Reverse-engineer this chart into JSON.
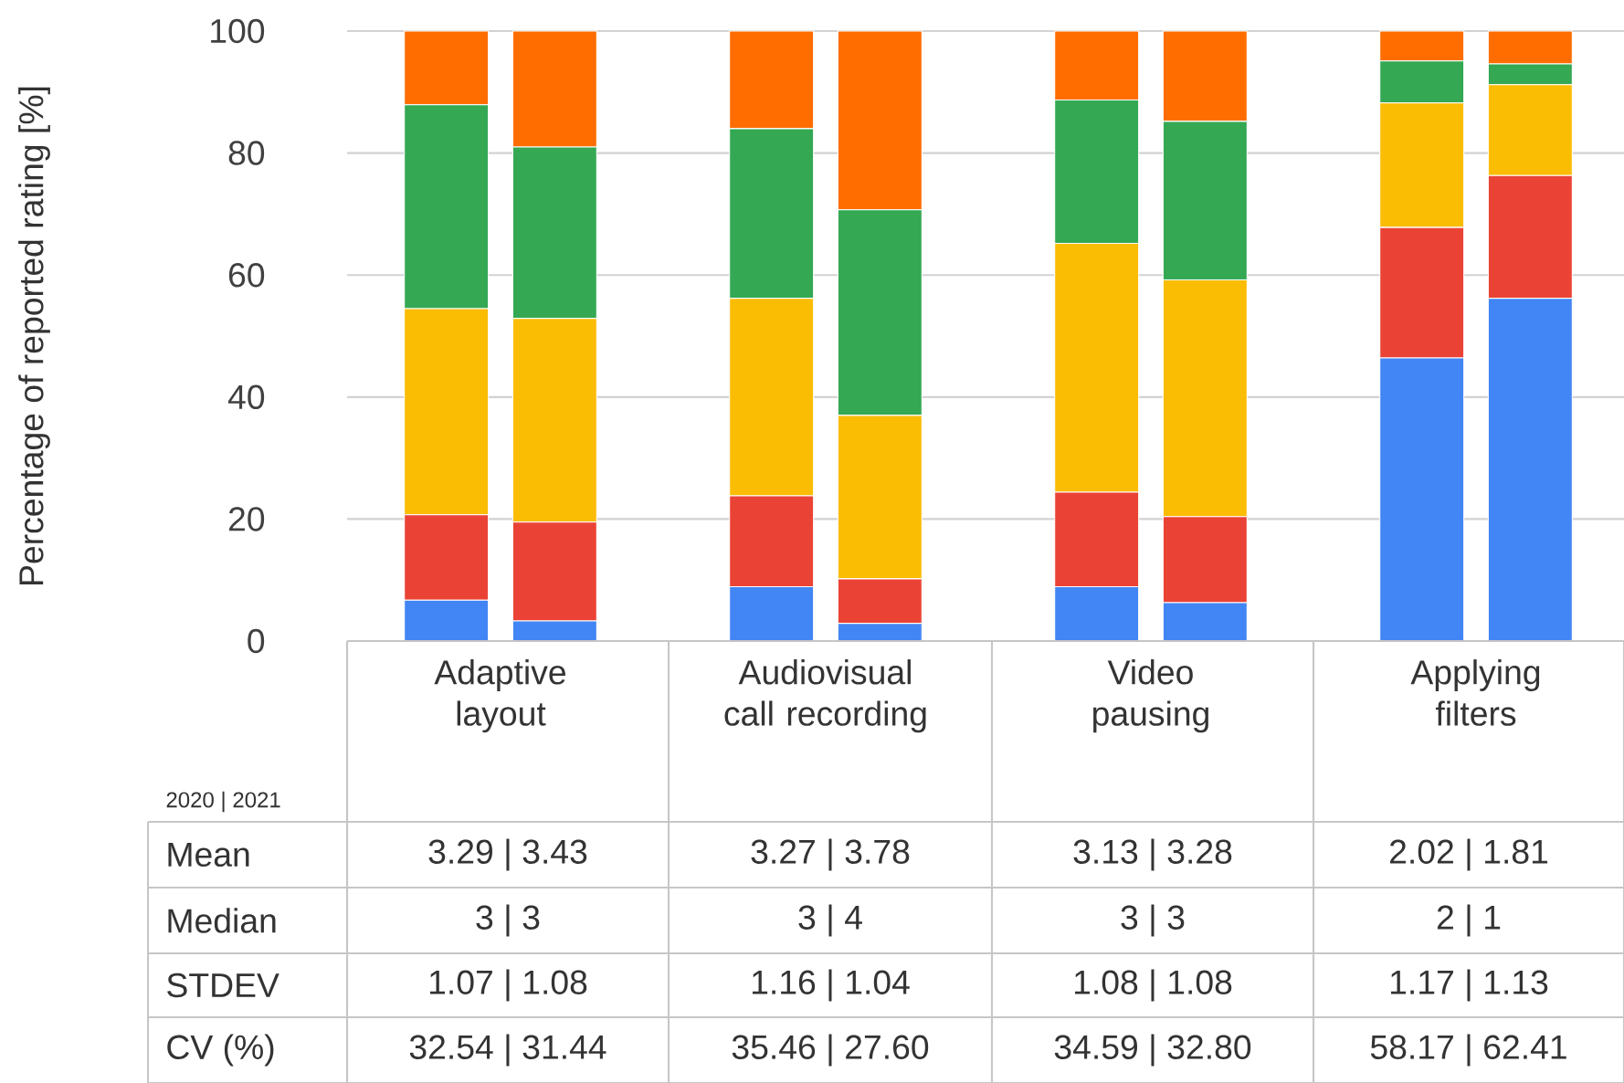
{
  "chart_data": {
    "type": "bar",
    "stacked": true,
    "ylabel": "Percentage of reported rating [%]",
    "categories": [
      "Adaptive layout",
      null,
      null,
      "Audiovisual call recording",
      null,
      null,
      "Video pausing",
      null,
      null,
      "Applying filters",
      null
    ],
    "series": [
      {
        "color": "#4285f4",
        "values": [
          6.7,
          3.3,
          null,
          8.9,
          2.9,
          null,
          8.9,
          6.3,
          null,
          46.4,
          56.2
        ]
      },
      {
        "color": "#ea4335",
        "values": [
          14.0,
          16.2,
          null,
          14.9,
          7.3,
          null,
          15.5,
          14.1,
          null,
          21.4,
          20.1
        ]
      },
      {
        "color": "#fbbc04",
        "values": [
          33.8,
          33.4,
          null,
          32.4,
          26.8,
          null,
          40.8,
          38.8,
          null,
          20.4,
          14.9
        ]
      },
      {
        "color": "#34a853",
        "values": [
          33.4,
          28.1,
          null,
          27.8,
          33.7,
          null,
          23.5,
          26.0,
          null,
          6.9,
          3.4
        ]
      },
      {
        "color": "#ff6d01",
        "values": [
          12.1,
          19.0,
          null,
          16.0,
          29.3,
          null,
          11.3,
          14.8,
          null,
          4.9,
          5.4
        ]
      }
    ],
    "ylim": [
      0,
      100
    ],
    "yticks": [
      0,
      20,
      40,
      60,
      80,
      100
    ],
    "grid": "y",
    "annotations": [
      "2020 | 2021",
      "Mean",
      "3.29 | 3.43",
      "3.27 | 3.78",
      "3.13 | 3.28",
      "2.02 | 1.81",
      "Median",
      "3 | 3",
      "3 | 4",
      "3 | 3",
      "2 | 1",
      "STDEV",
      "1.07 | 1.08",
      "1.16 | 1.04",
      "1.08 | 1.08",
      "1.17 | 1.13",
      "CV (%)",
      "32.54 | 31.44",
      "35.46 | 27.60",
      "34.59 | 32.80",
      "58.17 | 62.41"
    ]
  }
}
